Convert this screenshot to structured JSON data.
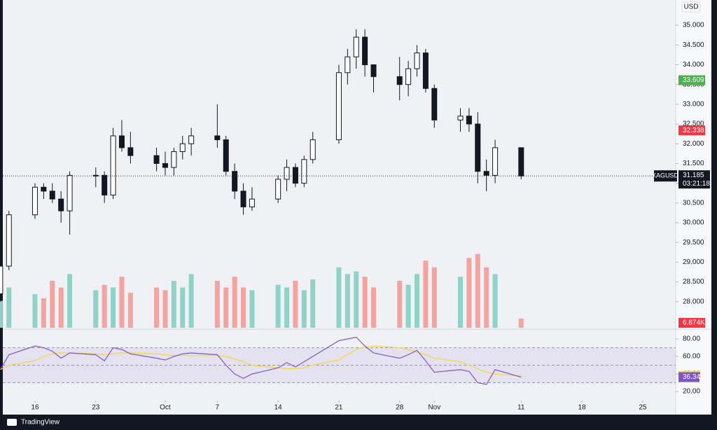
{
  "chart_data": {
    "type": "candlestick",
    "symbol": "XAGUSD",
    "currency": "USD",
    "x": [
      -4,
      -3,
      0,
      1,
      2,
      3,
      4,
      7,
      8,
      9,
      10,
      11,
      14,
      15,
      16,
      17,
      18,
      21,
      22,
      23,
      24,
      25,
      28,
      29,
      30,
      31,
      32,
      35,
      36,
      37,
      38,
      39,
      42,
      43,
      44,
      45,
      46,
      49,
      50,
      51,
      52,
      53,
      56
    ],
    "open": [
      28.2,
      28.9,
      30.2,
      30.9,
      30.8,
      30.6,
      30.3,
      31.2,
      31.2,
      30.7,
      32.2,
      31.9,
      31.7,
      31.5,
      31.4,
      31.8,
      32.0,
      32.2,
      32.1,
      31.3,
      30.8,
      30.4,
      30.6,
      31.1,
      31.4,
      31.0,
      31.6,
      32.1,
      33.8,
      34.2,
      34.7,
      34.0,
      33.7,
      33.5,
      33.9,
      34.3,
      33.4,
      32.6,
      32.7,
      32.5,
      31.3,
      31.2,
      31.9
    ],
    "high": [
      29.0,
      30.3,
      31.0,
      31.0,
      31.0,
      30.8,
      31.3,
      31.4,
      31.3,
      32.4,
      32.6,
      32.3,
      31.9,
      31.8,
      31.9,
      32.2,
      32.4,
      33.0,
      32.2,
      31.5,
      31.0,
      30.9,
      31.2,
      31.6,
      31.5,
      31.7,
      32.3,
      34.0,
      34.4,
      34.9,
      34.9,
      34.0,
      34.2,
      34.1,
      34.5,
      34.4,
      33.5,
      32.9,
      32.9,
      32.8,
      31.6,
      32.1,
      31.9
    ],
    "low": [
      28.0,
      28.8,
      30.1,
      30.6,
      30.5,
      30.0,
      29.7,
      30.9,
      30.5,
      30.6,
      31.8,
      31.5,
      31.3,
      31.2,
      31.2,
      31.6,
      31.7,
      31.9,
      31.2,
      30.6,
      30.2,
      30.3,
      30.5,
      30.8,
      30.9,
      30.9,
      31.5,
      32.0,
      33.5,
      33.9,
      33.7,
      33.3,
      33.1,
      33.2,
      33.7,
      33.3,
      32.4,
      32.3,
      32.3,
      31.0,
      30.8,
      31.0,
      31.1
    ],
    "close": [
      28.9,
      30.2,
      30.9,
      30.8,
      30.6,
      30.3,
      31.2,
      31.2,
      30.7,
      32.2,
      31.9,
      31.7,
      31.5,
      31.4,
      31.8,
      32.0,
      32.2,
      32.1,
      31.3,
      30.8,
      30.4,
      30.6,
      31.1,
      31.4,
      31.0,
      31.6,
      32.1,
      33.8,
      34.2,
      34.7,
      34.0,
      33.7,
      33.5,
      33.9,
      34.3,
      33.4,
      32.6,
      32.7,
      32.5,
      31.3,
      31.2,
      31.9,
      31.185
    ],
    "up_color": "#131722",
    "down_color": "#131722",
    "volume": [
      20,
      30,
      25,
      22,
      35,
      30,
      40,
      28,
      32,
      30,
      38,
      26,
      30,
      28,
      35,
      30,
      40,
      35,
      30,
      38,
      30,
      28,
      32,
      30,
      35,
      28,
      36,
      45,
      40,
      42,
      38,
      30,
      35,
      32,
      40,
      50,
      45,
      38,
      52,
      55,
      45,
      40,
      6.874
    ],
    "volume_label": "6.874K",
    "volume_lim": [
      0,
      60
    ],
    "volume_up_color": "#8fd3c8",
    "volume_down_color": "#f5a3a0",
    "xlim": [
      -4.03,
      73.8
    ],
    "xticks": [
      {
        "value": 0,
        "label": "16"
      },
      {
        "value": 7,
        "label": "23"
      },
      {
        "value": 15,
        "label": "Oct"
      },
      {
        "value": 21,
        "label": "7"
      },
      {
        "value": 28,
        "label": "14"
      },
      {
        "value": 35,
        "label": "21"
      },
      {
        "value": 42,
        "label": "28"
      },
      {
        "value": 46,
        "label": "Nov"
      },
      {
        "value": 56,
        "label": "11"
      },
      {
        "value": 63,
        "label": "18"
      },
      {
        "value": 70,
        "label": "25"
      }
    ],
    "ylim": [
      27.34,
      35.64
    ],
    "yticks": [
      {
        "value": 28,
        "label": "28.000"
      },
      {
        "value": 28.5,
        "label": "28.500"
      },
      {
        "value": 29,
        "label": "29.000"
      },
      {
        "value": 29.5,
        "label": "29.500"
      },
      {
        "value": 30,
        "label": "30.000"
      },
      {
        "value": 30.5,
        "label": "30.500"
      },
      {
        "value": 31,
        "label": "31.000"
      },
      {
        "value": 31.5,
        "label": "31.500"
      },
      {
        "value": 32,
        "label": "32.000"
      },
      {
        "value": 32.5,
        "label": "32.500"
      },
      {
        "value": 33,
        "label": "33.000"
      },
      {
        "value": 33.5,
        "label": "33.500"
      },
      {
        "value": 34,
        "label": "34.000"
      },
      {
        "value": 34.5,
        "label": "34.500"
      },
      {
        "value": 35,
        "label": "35.000"
      }
    ],
    "markers": [
      {
        "value": 33.609,
        "color": "#4caf50"
      },
      {
        "value": 32.338,
        "color": "#f23645"
      }
    ],
    "countdown": "03:21:18",
    "rsi": [
      45,
      62,
      72,
      70,
      66,
      58,
      64,
      62,
      55,
      70,
      68,
      63,
      58,
      56,
      60,
      63,
      64,
      62,
      50,
      40,
      35,
      40,
      47,
      53,
      48,
      54,
      60,
      78,
      80,
      82,
      72,
      64,
      58,
      62,
      67,
      55,
      42,
      45,
      43,
      30,
      28,
      45,
      36.34
    ],
    "rsi_ma": [
      45,
      50,
      55,
      60,
      63,
      64,
      64,
      63,
      62,
      63,
      64,
      64,
      63,
      62,
      61,
      61,
      61,
      61,
      60,
      57,
      54,
      50,
      47,
      46,
      46,
      47,
      50,
      56,
      62,
      68,
      71,
      72,
      70,
      68,
      65,
      62,
      58,
      54,
      50,
      46,
      42,
      40,
      37.63
    ],
    "rsi_color": "#7e57c2",
    "rsi_ma_color": "#f5d742",
    "rsi_ylim": [
      9.6,
      89.6
    ],
    "rsi_yticks": [
      {
        "value": 20,
        "label": "20.00"
      },
      {
        "value": 40,
        "label": "40.00"
      },
      {
        "value": 60,
        "label": "60.00"
      },
      {
        "value": 80,
        "label": "80.00"
      }
    ],
    "rsi_bands": [
      70,
      50,
      30
    ]
  },
  "footer": "TradingView"
}
